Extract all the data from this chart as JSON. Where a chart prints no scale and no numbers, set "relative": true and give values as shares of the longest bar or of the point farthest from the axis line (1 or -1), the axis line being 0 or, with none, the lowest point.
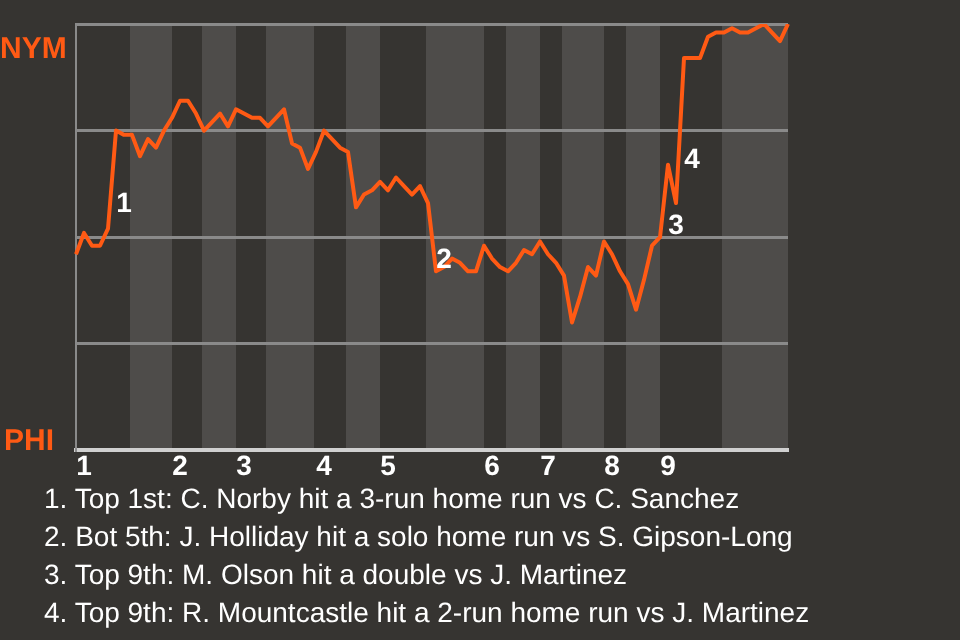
{
  "chart_data": {
    "type": "line",
    "relative": true,
    "categories": [
      null,
      "1",
      null,
      null,
      null,
      null,
      null,
      null,
      null,
      null,
      null,
      null,
      null,
      "2",
      null,
      null,
      null,
      null,
      null,
      null,
      null,
      "3",
      null,
      null,
      null,
      null,
      null,
      null,
      null,
      null,
      null,
      "4",
      null,
      null,
      null,
      null,
      null,
      null,
      null,
      "5",
      null,
      null,
      null,
      null,
      null,
      null,
      null,
      null,
      null,
      null,
      null,
      null,
      "6",
      null,
      null,
      null,
      null,
      null,
      null,
      "7",
      null,
      null,
      null,
      null,
      null,
      null,
      null,
      "8",
      null,
      null,
      null,
      null,
      null,
      null,
      "9",
      null,
      null,
      null,
      null,
      null,
      null,
      null,
      null,
      null,
      null,
      null,
      null,
      null,
      null,
      null
    ],
    "series": [
      {
        "color": "#ff5a14",
        "values": [
          0.46,
          0.51,
          0.48,
          0.48,
          0.52,
          0.75,
          0.74,
          0.74,
          0.69,
          0.73,
          0.71,
          0.75,
          0.78,
          0.82,
          0.82,
          0.79,
          0.75,
          0.77,
          0.79,
          0.76,
          0.8,
          0.79,
          0.78,
          0.78,
          0.76,
          0.78,
          0.8,
          0.72,
          0.71,
          0.66,
          0.7,
          0.75,
          0.73,
          0.71,
          0.7,
          0.57,
          0.6,
          0.61,
          0.63,
          0.61,
          0.64,
          0.62,
          0.6,
          0.62,
          0.58,
          0.42,
          0.43,
          0.45,
          0.44,
          0.42,
          0.42,
          0.48,
          0.45,
          0.43,
          0.42,
          0.44,
          0.47,
          0.46,
          0.49,
          0.46,
          0.44,
          0.41,
          0.3,
          0.36,
          0.43,
          0.41,
          0.49,
          0.46,
          0.42,
          0.39,
          0.33,
          0.4,
          0.48,
          0.5,
          0.67,
          0.58,
          0.92,
          0.92,
          0.92,
          0.97,
          0.98,
          0.98,
          0.99,
          0.98,
          0.98,
          0.99,
          1.0,
          0.98,
          0.96,
          1.0
        ]
      }
    ],
    "grid": "y",
    "legend": false,
    "marker": "none",
    "line_style": "solid",
    "annotations": [
      "NYM",
      "PHI",
      "1",
      "2",
      "3",
      "4",
      "1. Top 1st: C. Norby hit a 3-run home run vs C. Sanchez",
      "2. Bot 5th: J. Holliday hit a solo home run vs S. Gipson-Long",
      "3. Top 9th: M. Olson hit a double vs J. Martinez",
      "4. Top 9th: R. Mountcastle hit a 2-run home run vs J. Martinez"
    ]
  }
}
